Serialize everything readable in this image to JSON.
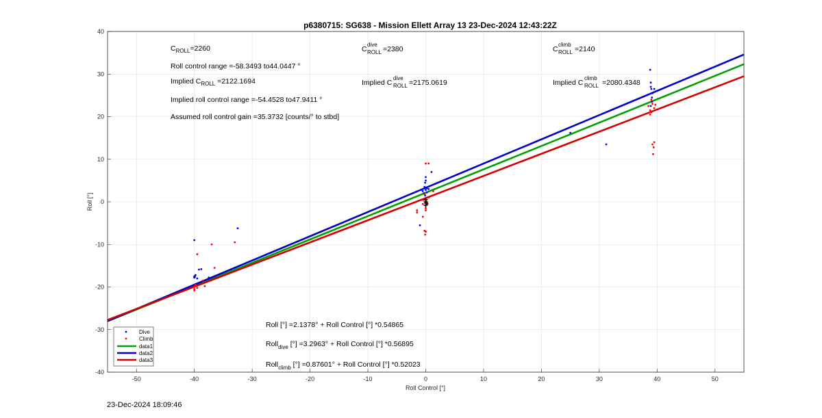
{
  "footer": {
    "timestamp": "23-Dec-2024 18:09:46"
  },
  "chart_data": {
    "type": "scatter",
    "title": "p6380715: SG638 - Mission Ellett Array 13 23-Dec-2024 12:43:22Z",
    "xlabel": "Roll Control [°]",
    "ylabel": "Roll [°]",
    "xlim": [
      -55,
      55
    ],
    "ylim": [
      -40,
      40
    ],
    "xticks": [
      -50,
      -40,
      -30,
      -20,
      -10,
      0,
      10,
      20,
      30,
      40,
      50
    ],
    "yticks": [
      -40,
      -30,
      -20,
      -10,
      0,
      10,
      20,
      30,
      40
    ],
    "grid": true,
    "legend_position": "bottom-left",
    "legend": [
      "Dive",
      "Climb",
      "data1",
      "data2",
      "data3"
    ],
    "annotations": {
      "c_roll": {
        "main": "C",
        "sub": "ROLL",
        "rest": "=2260"
      },
      "roll_range": "Roll control range =-58.3493 to44.0447 °",
      "implied_c_roll": {
        "pre": "Implied C",
        "sub": "ROLL",
        "rest": " =2122.1694"
      },
      "implied_range": "Implied roll control range =-54.4528 to47.9411 °",
      "gain": "Assumed roll control gain =35.3732 [counts/° to stbd]",
      "c_roll_dive": {
        "main": "C",
        "sup": "dive",
        "sub": "ROLL",
        "rest": " =2380"
      },
      "implied_dive": {
        "pre": "Implied C",
        "sup": "dive",
        "sub": "ROLL",
        "rest": " =2175.0619"
      },
      "c_roll_climb": {
        "main": "C",
        "sup": "climb",
        "sub": "ROLL",
        "rest": " =2140"
      },
      "implied_climb": {
        "pre": "Implied C",
        "sup": "climb",
        "sub": "ROLL",
        "rest": " =2080.4348"
      },
      "eq_all": "Roll [°] =2.1378° + Roll Control [°] *0.54865",
      "eq_dive": {
        "pre": "Roll",
        "sub": "dive",
        "rest": " [°] =3.2963° + Roll Control [°] *0.56895"
      },
      "eq_climb": {
        "pre": "Roll",
        "sub": "climb",
        "rest": " [°] =0.87601° + Roll Control [°] *0.52023"
      }
    },
    "series": [
      {
        "name": "Dive",
        "kind": "points",
        "color": "#0000ff",
        "points": [
          [
            -40,
            -17.5
          ],
          [
            -40,
            -17.8
          ],
          [
            -39.8,
            -17.2
          ],
          [
            -40,
            -9
          ],
          [
            -39.2,
            -15.9
          ],
          [
            -38.8,
            -15.8
          ],
          [
            -39.5,
            -18
          ],
          [
            -39.9,
            -17.6
          ],
          [
            -32.5,
            -6.2
          ],
          [
            -37.5,
            -17.8
          ],
          [
            -0.5,
            2.5
          ],
          [
            -0.2,
            3.5
          ],
          [
            -0.1,
            4.5
          ],
          [
            0,
            5
          ],
          [
            0,
            5.8
          ],
          [
            0,
            2.8
          ],
          [
            0.2,
            3.2
          ],
          [
            -0.3,
            2
          ],
          [
            -0.8,
            2.8
          ],
          [
            1,
            7
          ],
          [
            0.5,
            3
          ],
          [
            0.2,
            2.2
          ],
          [
            -0.1,
            1.5
          ],
          [
            -1,
            -5.5
          ],
          [
            25,
            16.2
          ],
          [
            31.2,
            13.5
          ],
          [
            38.2,
            25
          ],
          [
            38.8,
            31
          ],
          [
            38.9,
            28
          ],
          [
            38.9,
            27
          ],
          [
            39,
            26.5
          ],
          [
            39.2,
            25.5
          ],
          [
            39.5,
            26.5
          ],
          [
            39.1,
            24.5
          ],
          [
            38.9,
            22.5
          ],
          [
            39.1,
            23.5
          ]
        ]
      },
      {
        "name": "Climb",
        "kind": "points",
        "color": "#ff0000",
        "points": [
          [
            -40,
            -20.5
          ],
          [
            -40,
            -20.8
          ],
          [
            -39.5,
            -20.2
          ],
          [
            -40,
            -20
          ],
          [
            -39.5,
            -12.3
          ],
          [
            -38.5,
            -18.5
          ],
          [
            -38.2,
            -19.8
          ],
          [
            -37,
            -10
          ],
          [
            -36.5,
            -15.5
          ],
          [
            -33,
            -9.5
          ],
          [
            -39.8,
            -19.5
          ],
          [
            -1.5,
            -2
          ],
          [
            -1.5,
            -2.5
          ],
          [
            -0.5,
            -3.5
          ],
          [
            -0.2,
            -6.8
          ],
          [
            -0.1,
            -7.7
          ],
          [
            0,
            -7
          ],
          [
            0,
            -1.5
          ],
          [
            0,
            -2
          ],
          [
            0.3,
            -0.5
          ],
          [
            0.5,
            1
          ],
          [
            -0.2,
            1.8
          ],
          [
            0,
            9
          ],
          [
            0.5,
            9
          ],
          [
            1.2,
            1.5
          ],
          [
            1.3,
            2.5
          ],
          [
            -0.5,
            -0.5
          ],
          [
            -0.4,
            0.5
          ],
          [
            38.5,
            22.5
          ],
          [
            38.8,
            20.5
          ],
          [
            39,
            21
          ],
          [
            39.5,
            22
          ],
          [
            39.2,
            23
          ],
          [
            39,
            24
          ],
          [
            39.2,
            13.5
          ],
          [
            39.5,
            14
          ],
          [
            39.3,
            11.2
          ],
          [
            39.4,
            12.8
          ],
          [
            39.7,
            22.8
          ],
          [
            38.8,
            21.5
          ]
        ]
      },
      {
        "name": "data1",
        "kind": "line",
        "color": "#00a000",
        "intercept": 2.1378,
        "slope": 0.54865
      },
      {
        "name": "data2",
        "kind": "line",
        "color": "#0000c8",
        "intercept": 3.2963,
        "slope": 0.56895
      },
      {
        "name": "data3",
        "kind": "line",
        "color": "#d40000",
        "intercept": 0.87601,
        "slope": 0.52023
      },
      {
        "name": "",
        "kind": "marks",
        "color": "#000000",
        "points": [
          [
            0,
            0
          ],
          [
            0,
            -0.8
          ],
          [
            0,
            0.5
          ],
          [
            0.1,
            -0.3
          ]
        ]
      }
    ]
  }
}
